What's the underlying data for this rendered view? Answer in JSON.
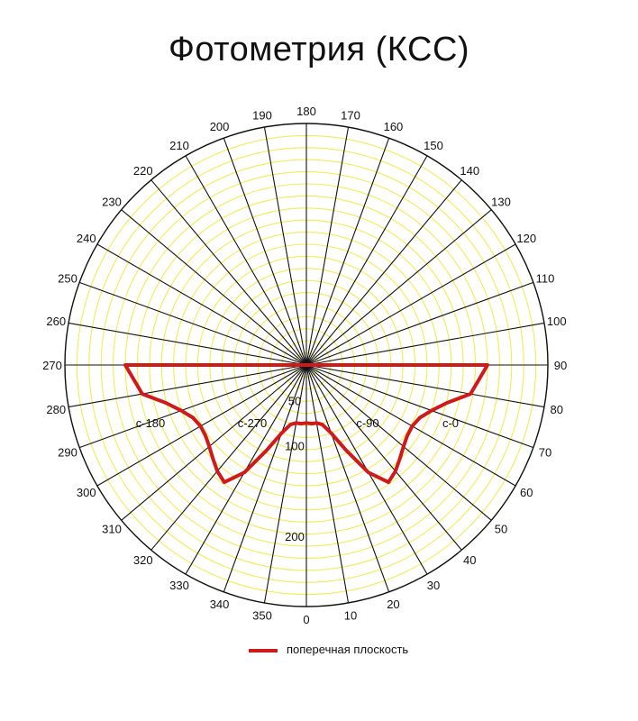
{
  "chart_data": {
    "type": "polar",
    "title": "Фотометрия (КСС)",
    "angle_labels": [
      "0",
      "10",
      "20",
      "30",
      "40",
      "50",
      "60",
      "70",
      "80",
      "90",
      "100",
      "110",
      "120",
      "130",
      "140",
      "150",
      "160",
      "170",
      "180",
      "190",
      "200",
      "210",
      "220",
      "230",
      "240",
      "250",
      "260",
      "270",
      "280",
      "290",
      "300",
      "310",
      "320",
      "330",
      "340",
      "350"
    ],
    "radial_tick_labels": [
      "50",
      "100",
      "200"
    ],
    "rlim": [
      0,
      200
    ],
    "plane_labels": [
      "c-180",
      "c-270",
      "c-90",
      "c-0"
    ],
    "grid": true,
    "grid_color": "#f2ec55",
    "spoke_color": "#111111",
    "legend_position": "bottom",
    "series": [
      {
        "name": "поперечная плоскость",
        "color": "#d01919",
        "points": [
          {
            "angle": 90,
            "r": 200
          },
          {
            "angle": 80,
            "r": 184
          },
          {
            "angle": 75,
            "r": 161
          },
          {
            "angle": 70,
            "r": 147
          },
          {
            "angle": 65,
            "r": 138
          },
          {
            "angle": 60,
            "r": 135
          },
          {
            "angle": 55,
            "r": 136
          },
          {
            "angle": 50,
            "r": 140
          },
          {
            "angle": 45,
            "r": 146
          },
          {
            "angle": 40,
            "r": 153
          },
          {
            "angle": 35,
            "r": 158
          },
          {
            "angle": 30,
            "r": 137
          },
          {
            "angle": 25,
            "r": 104
          },
          {
            "angle": 20,
            "r": 80
          },
          {
            "angle": 15,
            "r": 68
          },
          {
            "angle": 10,
            "r": 65
          },
          {
            "angle": 5,
            "r": 65
          },
          {
            "angle": 0,
            "r": 64
          },
          {
            "angle": 355,
            "r": 65
          },
          {
            "angle": 350,
            "r": 65
          },
          {
            "angle": 345,
            "r": 68
          },
          {
            "angle": 340,
            "r": 80
          },
          {
            "angle": 335,
            "r": 104
          },
          {
            "angle": 330,
            "r": 137
          },
          {
            "angle": 325,
            "r": 158
          },
          {
            "angle": 320,
            "r": 153
          },
          {
            "angle": 315,
            "r": 146
          },
          {
            "angle": 310,
            "r": 140
          },
          {
            "angle": 305,
            "r": 136
          },
          {
            "angle": 300,
            "r": 135
          },
          {
            "angle": 295,
            "r": 138
          },
          {
            "angle": 290,
            "r": 147
          },
          {
            "angle": 285,
            "r": 161
          },
          {
            "angle": 280,
            "r": 184
          },
          {
            "angle": 270,
            "r": 200
          }
        ]
      }
    ]
  },
  "legend": {
    "label": "поперечная плоскость"
  }
}
